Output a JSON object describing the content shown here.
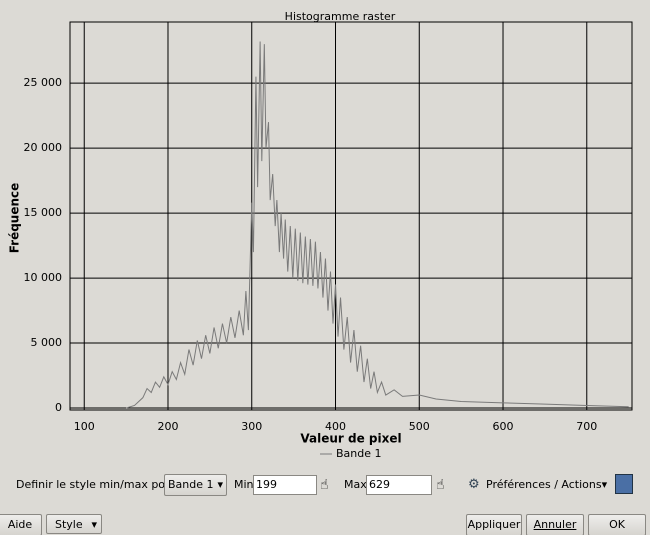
{
  "chart_data": {
    "type": "line",
    "title": "Histogramme raster",
    "xlabel": "Valeur de pixel",
    "ylabel": "Fréquence",
    "x": [
      150,
      160,
      170,
      175,
      180,
      185,
      190,
      195,
      200,
      205,
      210,
      215,
      220,
      225,
      230,
      235,
      240,
      245,
      250,
      255,
      260,
      265,
      270,
      275,
      280,
      285,
      290,
      293,
      296,
      300,
      302,
      305,
      307,
      310,
      312,
      315,
      317,
      320,
      322,
      325,
      328,
      330,
      333,
      335,
      338,
      340,
      343,
      346,
      349,
      352,
      355,
      358,
      361,
      364,
      367,
      370,
      373,
      376,
      379,
      382,
      385,
      388,
      391,
      394,
      397,
      400,
      403,
      406,
      410,
      414,
      418,
      422,
      426,
      430,
      434,
      438,
      442,
      446,
      450,
      455,
      460,
      470,
      480,
      500,
      520,
      550,
      600,
      650,
      700,
      750
    ],
    "series": [
      {
        "name": "Bande 1",
        "color": "#7a7a7a",
        "values": [
          0,
          200,
          800,
          1500,
          1200,
          2000,
          1600,
          2400,
          1800,
          2800,
          2200,
          3500,
          2600,
          4500,
          3300,
          5200,
          3800,
          5600,
          4200,
          6200,
          4600,
          6500,
          5000,
          7000,
          5400,
          7500,
          5600,
          9000,
          6000,
          15800,
          12000,
          25500,
          17000,
          28200,
          19000,
          28000,
          20000,
          22000,
          16000,
          18000,
          14000,
          16000,
          12000,
          15000,
          11500,
          14500,
          10500,
          14000,
          10000,
          13800,
          9800,
          13500,
          9600,
          13200,
          9500,
          13000,
          9400,
          12800,
          9200,
          12000,
          8500,
          11500,
          7500,
          10500,
          6500,
          9500,
          5500,
          8500,
          4500,
          7000,
          3500,
          6000,
          2800,
          4800,
          2000,
          3800,
          1500,
          2800,
          1200,
          2000,
          1000,
          1400,
          900,
          1000,
          700,
          500,
          400,
          300,
          200,
          100
        ]
      }
    ],
    "xlim": [
      83,
      754
    ],
    "ylim": [
      -150,
      29700
    ],
    "xticks": [
      100,
      200,
      300,
      400,
      500,
      600,
      700
    ],
    "yticks": [
      0,
      {
        "value": 5000,
        "label": "5 000"
      },
      {
        "value": 10000,
        "label": "10 000"
      },
      {
        "value": 15000,
        "label": "15 000"
      },
      {
        "value": 20000,
        "label": "20 000"
      },
      {
        "value": 25000,
        "label": "25 000"
      }
    ],
    "grid": true
  },
  "controls": {
    "style_label": "Definir le style min/max pour",
    "band": "Bande 1",
    "min_label": "Min",
    "min": 199,
    "max_label": "Max",
    "max": 629,
    "actions": "Préférences / Actions"
  },
  "buttons": {
    "help": "Aide",
    "style": "Style",
    "apply": "Appliquer",
    "cancel": "Annuler",
    "ok": "OK"
  }
}
